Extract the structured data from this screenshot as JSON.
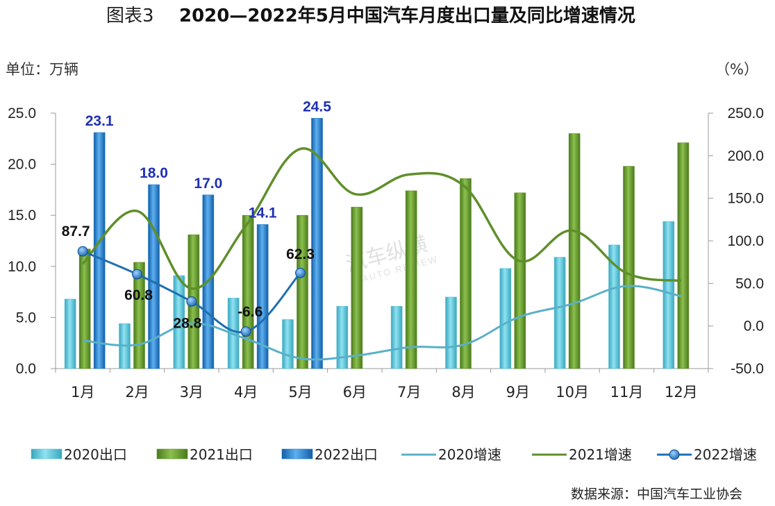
{
  "title_prefix": "图表3",
  "title": "2020—2022年5月中国汽车月度出口量及同比增速情况",
  "left_unit": "单位：万辆",
  "right_unit": "（%）",
  "source": "数据来源：中国汽车工业协会",
  "watermark": {
    "text": "汽车纵横",
    "sub": "AUTO REVIEW"
  },
  "colors": {
    "bar_2020": "#5bc0d4",
    "bar_2021": "#5f8f2a",
    "bar_2022": "#1f77c8",
    "line_2020": "#5ab0c8",
    "line_2021": "#5f8f2a",
    "line_2022": "#1f6fb0",
    "bar_label": "#1f2fb4"
  },
  "chart_data": {
    "type": "bar",
    "categories": [
      "1月",
      "2月",
      "3月",
      "4月",
      "5月",
      "6月",
      "7月",
      "8月",
      "9月",
      "10月",
      "11月",
      "12月"
    ],
    "left_ticks": [
      "0.0",
      "5.0",
      "10.0",
      "15.0",
      "20.0",
      "25.0"
    ],
    "right_ticks": [
      "-50.0",
      "0.0",
      "50.0",
      "100.0",
      "150.0",
      "200.0",
      "250.0"
    ],
    "ylim_left": [
      0,
      25
    ],
    "ylim_right": [
      -50,
      250
    ],
    "bars": [
      {
        "name": "2020出口",
        "values": [
          6.8,
          4.4,
          9.1,
          6.9,
          4.8,
          6.1,
          6.1,
          7.0,
          9.8,
          10.9,
          12.1,
          14.4
        ]
      },
      {
        "name": "2021出口",
        "values": [
          11.7,
          10.4,
          13.1,
          15.0,
          15.0,
          15.8,
          17.4,
          18.6,
          17.2,
          23.0,
          19.8,
          22.1
        ]
      },
      {
        "name": "2022出口",
        "values": [
          23.1,
          18.0,
          17.0,
          14.1,
          24.5
        ]
      }
    ],
    "lines": [
      {
        "name": "2020增速",
        "values": [
          -17,
          -22,
          3,
          -15,
          -38,
          -35,
          -25,
          -22,
          10,
          26,
          47,
          35
        ]
      },
      {
        "name": "2021增速",
        "values": [
          73,
          135,
          44,
          118,
          208,
          155,
          178,
          165,
          77,
          112,
          62,
          53
        ]
      },
      {
        "name": "2022增速",
        "values": [
          87.7,
          60.8,
          28.8,
          -6.6,
          62.3
        ]
      }
    ],
    "bar_data_labels": [
      "23.1",
      "18.0",
      "17.0",
      "14.1",
      "24.5"
    ],
    "point_data_labels": [
      "87.7",
      "60.8",
      "28.8",
      "-6.6",
      "62.3"
    ],
    "legend": [
      "2020出口",
      "2021出口",
      "2022出口",
      "2020增速",
      "2021增速",
      "2022增速"
    ],
    "legend_position": "bottom"
  }
}
